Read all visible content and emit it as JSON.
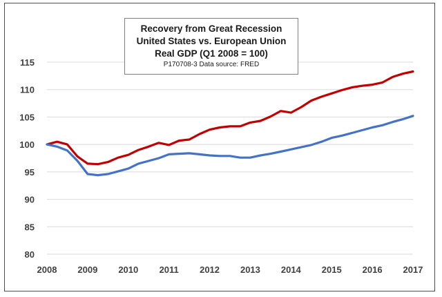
{
  "chart_data": {
    "type": "line",
    "title_lines": [
      "Recovery from Great Recession",
      "United States vs. European Union",
      "Real GDP (Q1 2008 = 100)"
    ],
    "subtitle": "P170708-3  Data source: FRED",
    "xlim": [
      2008,
      2017
    ],
    "ylim": [
      80,
      115
    ],
    "x_ticks": [
      "2008",
      "2009",
      "2010",
      "2011",
      "2012",
      "2013",
      "2014",
      "2015",
      "2016",
      "2017"
    ],
    "y_ticks": [
      "80",
      "85",
      "90",
      "95",
      "100",
      "105",
      "110",
      "115"
    ],
    "grid": "horizontal",
    "legend": "none",
    "series": [
      {
        "color": "#c00000",
        "x": [
          2008.0,
          2008.25,
          2008.5,
          2008.75,
          2009.0,
          2009.25,
          2009.5,
          2009.75,
          2010.0,
          2010.25,
          2010.5,
          2010.75,
          2011.0,
          2011.25,
          2011.5,
          2011.75,
          2012.0,
          2012.25,
          2012.5,
          2012.75,
          2013.0,
          2013.25,
          2013.5,
          2013.75,
          2014.0,
          2014.25,
          2014.5,
          2014.75,
          2015.0,
          2015.25,
          2015.5,
          2015.75,
          2016.0,
          2016.25,
          2016.5,
          2016.75,
          2017.0
        ],
        "values": [
          100.0,
          100.5,
          100.0,
          97.8,
          96.5,
          96.4,
          96.8,
          97.6,
          98.1,
          99.0,
          99.6,
          100.3,
          99.9,
          100.7,
          100.9,
          101.9,
          102.7,
          103.1,
          103.3,
          103.3,
          104.0,
          104.3,
          105.1,
          106.1,
          105.8,
          106.8,
          108.0,
          108.7,
          109.3,
          109.9,
          110.4,
          110.7,
          110.9,
          111.3,
          112.3,
          112.9,
          113.3
        ]
      },
      {
        "color": "#4472c4",
        "x": [
          2008.0,
          2008.25,
          2008.5,
          2008.75,
          2009.0,
          2009.25,
          2009.5,
          2009.75,
          2010.0,
          2010.25,
          2010.5,
          2010.75,
          2011.0,
          2011.25,
          2011.5,
          2011.75,
          2012.0,
          2012.25,
          2012.5,
          2012.75,
          2013.0,
          2013.25,
          2013.5,
          2013.75,
          2014.0,
          2014.25,
          2014.5,
          2014.75,
          2015.0,
          2015.25,
          2015.5,
          2015.75,
          2016.0,
          2016.25,
          2016.5,
          2016.75,
          2017.0
        ],
        "values": [
          100.0,
          99.6,
          98.9,
          97.0,
          94.6,
          94.4,
          94.6,
          95.1,
          95.6,
          96.5,
          97.0,
          97.5,
          98.2,
          98.3,
          98.4,
          98.2,
          98.0,
          97.9,
          97.9,
          97.6,
          97.6,
          98.0,
          98.3,
          98.7,
          99.1,
          99.5,
          99.9,
          100.5,
          101.2,
          101.6,
          102.1,
          102.6,
          103.1,
          103.5,
          104.1,
          104.6,
          105.2
        ]
      }
    ]
  }
}
